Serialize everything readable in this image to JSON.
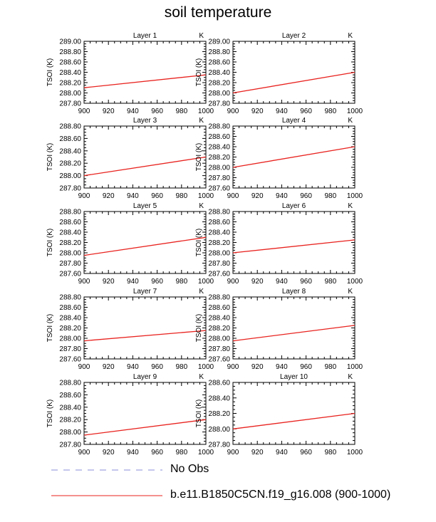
{
  "page_title": "soil temperature",
  "colors": {
    "model_line": "#e8231f",
    "obs_line": "#9fa3e0",
    "axis": "#000000"
  },
  "legend": {
    "obs_label": "No Obs",
    "model_label": "b.e11.B1850C5CN.f19_g16.008 (900-1000)"
  },
  "chart_data": [
    {
      "type": "line",
      "title": "Layer 1",
      "units": "K",
      "ylabel": "TSOI (K)",
      "xlim": [
        900,
        1000
      ],
      "ylim": [
        287.8,
        289.0
      ],
      "xticks": [
        900,
        920,
        940,
        960,
        980,
        1000
      ],
      "yticks": [
        "287.80",
        "288.00",
        "288.20",
        "288.40",
        "288.60",
        "288.80",
        "289.00"
      ],
      "series": [
        {
          "x": [
            900,
            1000
          ],
          "y": [
            288.1,
            288.35
          ]
        }
      ]
    },
    {
      "type": "line",
      "title": "Layer 2",
      "units": "K",
      "ylabel": "TSOI (K)",
      "xlim": [
        900,
        1000
      ],
      "ylim": [
        287.8,
        289.0
      ],
      "xticks": [
        900,
        920,
        940,
        960,
        980,
        1000
      ],
      "yticks": [
        "287.80",
        "288.00",
        "288.20",
        "288.40",
        "288.60",
        "288.80",
        "289.00"
      ],
      "series": [
        {
          "x": [
            900,
            1000
          ],
          "y": [
            288.0,
            288.4
          ]
        }
      ]
    },
    {
      "type": "line",
      "title": "Layer 3",
      "units": "K",
      "ylabel": "TSOI (K)",
      "xlim": [
        900,
        1000
      ],
      "ylim": [
        287.8,
        288.8
      ],
      "xticks": [
        900,
        920,
        940,
        960,
        980,
        1000
      ],
      "yticks": [
        "287.80",
        "288.00",
        "288.20",
        "288.40",
        "288.60",
        "288.80"
      ],
      "series": [
        {
          "x": [
            900,
            1000
          ],
          "y": [
            288.0,
            288.3
          ]
        }
      ]
    },
    {
      "type": "line",
      "title": "Layer 4",
      "units": "K",
      "ylabel": "TSOI (K)",
      "xlim": [
        900,
        1000
      ],
      "ylim": [
        287.6,
        288.8
      ],
      "xticks": [
        900,
        920,
        940,
        960,
        980,
        1000
      ],
      "yticks": [
        "287.60",
        "287.80",
        "288.00",
        "288.20",
        "288.40",
        "288.60",
        "288.80"
      ],
      "series": [
        {
          "x": [
            900,
            1000
          ],
          "y": [
            288.0,
            288.4
          ]
        }
      ]
    },
    {
      "type": "line",
      "title": "Layer 5",
      "units": "K",
      "ylabel": "TSOI (K)",
      "xlim": [
        900,
        1000
      ],
      "ylim": [
        287.6,
        288.8
      ],
      "xticks": [
        900,
        920,
        940,
        960,
        980,
        1000
      ],
      "yticks": [
        "287.60",
        "287.80",
        "288.00",
        "288.20",
        "288.40",
        "288.60",
        "288.80"
      ],
      "series": [
        {
          "x": [
            900,
            1000
          ],
          "y": [
            287.95,
            288.3
          ]
        }
      ]
    },
    {
      "type": "line",
      "title": "Layer 6",
      "units": "K",
      "ylabel": "TSOI (K)",
      "xlim": [
        900,
        1000
      ],
      "ylim": [
        287.6,
        288.8
      ],
      "xticks": [
        900,
        920,
        940,
        960,
        980,
        1000
      ],
      "yticks": [
        "287.60",
        "287.80",
        "288.00",
        "288.20",
        "288.40",
        "288.60",
        "288.80"
      ],
      "series": [
        {
          "x": [
            900,
            1000
          ],
          "y": [
            288.0,
            288.25
          ]
        }
      ]
    },
    {
      "type": "line",
      "title": "Layer 7",
      "units": "K",
      "ylabel": "TSOI (K)",
      "xlim": [
        900,
        1000
      ],
      "ylim": [
        287.6,
        288.8
      ],
      "xticks": [
        900,
        920,
        940,
        960,
        980,
        1000
      ],
      "yticks": [
        "287.60",
        "287.80",
        "288.00",
        "288.20",
        "288.40",
        "288.60",
        "288.80"
      ],
      "series": [
        {
          "x": [
            900,
            1000
          ],
          "y": [
            287.95,
            288.15
          ]
        }
      ]
    },
    {
      "type": "line",
      "title": "Layer 8",
      "units": "K",
      "ylabel": "TSOI (K)",
      "xlim": [
        900,
        1000
      ],
      "ylim": [
        287.6,
        288.8
      ],
      "xticks": [
        900,
        920,
        940,
        960,
        980,
        1000
      ],
      "yticks": [
        "287.60",
        "287.80",
        "288.00",
        "288.20",
        "288.40",
        "288.60",
        "288.80"
      ],
      "series": [
        {
          "x": [
            900,
            1000
          ],
          "y": [
            287.95,
            288.25
          ]
        }
      ]
    },
    {
      "type": "line",
      "title": "Layer 9",
      "units": "K",
      "ylabel": "TSOI (K)",
      "xlim": [
        900,
        1000
      ],
      "ylim": [
        287.8,
        288.8
      ],
      "xticks": [
        900,
        920,
        940,
        960,
        980,
        1000
      ],
      "yticks": [
        "287.80",
        "288.00",
        "288.20",
        "288.40",
        "288.60",
        "288.80"
      ],
      "series": [
        {
          "x": [
            900,
            1000
          ],
          "y": [
            287.95,
            288.2
          ]
        }
      ]
    },
    {
      "type": "line",
      "title": "Layer 10",
      "units": "K",
      "ylabel": "TSOI (K)",
      "xlim": [
        900,
        1000
      ],
      "ylim": [
        287.8,
        288.6
      ],
      "xticks": [
        900,
        920,
        940,
        960,
        980,
        1000
      ],
      "yticks": [
        "287.80",
        "288.00",
        "288.20",
        "288.40",
        "288.60"
      ],
      "series": [
        {
          "x": [
            900,
            1000
          ],
          "y": [
            288.0,
            288.2
          ]
        }
      ]
    }
  ]
}
